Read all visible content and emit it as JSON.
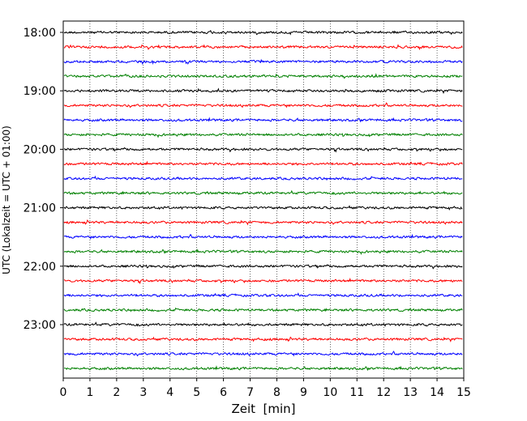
{
  "chart_data": {
    "type": "line",
    "title": "",
    "xlabel": "Zeit  [min]",
    "ylabel": "UTC (Lokalzeit = UTC + 01:00)",
    "xlim": [
      0,
      15
    ],
    "x_ticks": [
      "0",
      "1",
      "2",
      "3",
      "4",
      "5",
      "6",
      "7",
      "8",
      "9",
      "10",
      "11",
      "12",
      "13",
      "14",
      "15"
    ],
    "y_ticks": [
      "18:00",
      "19:00",
      "20:00",
      "21:00",
      "22:00",
      "23:00"
    ],
    "grid": "vertical dotted",
    "trace_interval_minutes": 15,
    "trace_start": "18:00",
    "trace_count": 24,
    "trace_colors": [
      "#000000",
      "#ff0000",
      "#0000ff",
      "#008000"
    ],
    "note": "helicorder seismograph traces; each row is 15 minutes of ground motion"
  }
}
